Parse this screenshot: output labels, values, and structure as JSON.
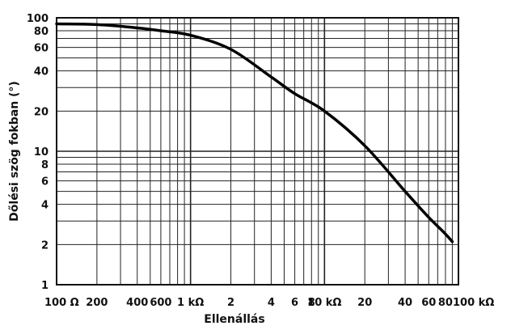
{
  "chart_data": {
    "type": "line",
    "xlabel": "Ellenállás",
    "ylabel": "Dőlési szög fokban (°)",
    "x_scale": "log",
    "y_scale": "log",
    "xlim": [
      100,
      100000
    ],
    "ylim": [
      1,
      100
    ],
    "grid": true,
    "x_ticks": [
      {
        "value": 100,
        "label": "100 Ω"
      },
      {
        "value": 200,
        "label": "200"
      },
      {
        "value": 400,
        "label": "400"
      },
      {
        "value": 600,
        "label": "600"
      },
      {
        "value": 1000,
        "label": "1 kΩ"
      },
      {
        "value": 2000,
        "label": "2"
      },
      {
        "value": 4000,
        "label": "4"
      },
      {
        "value": 6000,
        "label": "6"
      },
      {
        "value": 8000,
        "label": "8"
      },
      {
        "value": 10000,
        "label": "10 kΩ"
      },
      {
        "value": 20000,
        "label": "20"
      },
      {
        "value": 40000,
        "label": "40"
      },
      {
        "value": 60000,
        "label": "60"
      },
      {
        "value": 80000,
        "label": "80"
      },
      {
        "value": 100000,
        "label": "100 kΩ"
      }
    ],
    "y_ticks": [
      {
        "value": 1,
        "label": "1"
      },
      {
        "value": 2,
        "label": "2"
      },
      {
        "value": 4,
        "label": "4"
      },
      {
        "value": 6,
        "label": "6"
      },
      {
        "value": 8,
        "label": "8"
      },
      {
        "value": 10,
        "label": "10"
      },
      {
        "value": 20,
        "label": "20"
      },
      {
        "value": 40,
        "label": "40"
      },
      {
        "value": 60,
        "label": "60"
      },
      {
        "value": 80,
        "label": "80"
      },
      {
        "value": 100,
        "label": "100"
      }
    ],
    "series": [
      {
        "x": [
          100,
          200,
          400,
          600,
          1000,
          2000,
          4000,
          6000,
          10000,
          20000,
          40000,
          60000,
          80000,
          90000
        ],
        "y": [
          90,
          89,
          84,
          80,
          74,
          58,
          36,
          27,
          20,
          11,
          5,
          3.2,
          2.4,
          2.1
        ]
      }
    ]
  }
}
